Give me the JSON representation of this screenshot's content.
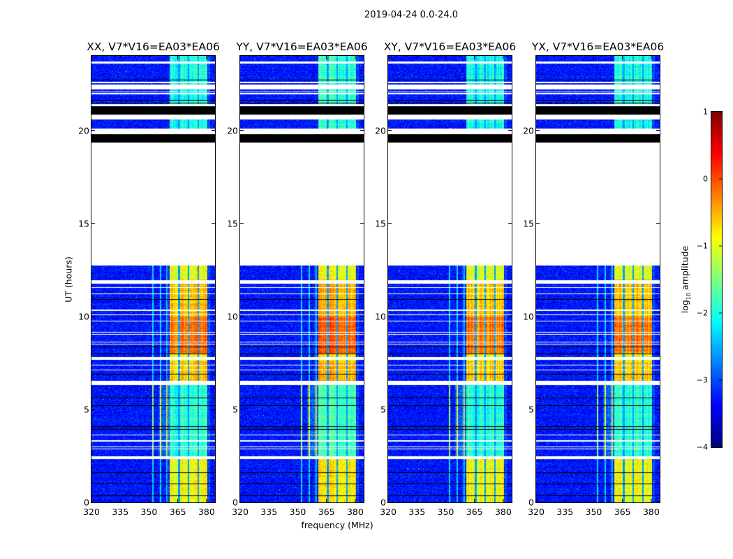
{
  "figure_title": "2019-04-24 0.0-24.0",
  "chart_data": {
    "type": "heatmap",
    "panels": [
      {
        "title": "XX, V7*V16=EA03*EA06",
        "seed": 11,
        "gain": 0.0
      },
      {
        "title": "YY, V7*V16=EA03*EA06",
        "seed": 23,
        "gain": 0.1
      },
      {
        "title": "XY, V7*V16=EA03*EA06",
        "seed": 37,
        "gain": -0.05
      },
      {
        "title": "YX, V7*V16=EA03*EA06",
        "seed": 51,
        "gain": -0.05
      }
    ],
    "xlabel": "frequency (MHz)",
    "ylabel": "UT (hours)",
    "xlim": [
      320,
      384.4
    ],
    "ylim": [
      0,
      24
    ],
    "xticks": [
      320,
      335,
      350,
      365,
      380
    ],
    "xtick_labels": [
      "320",
      "335",
      "350",
      "365",
      "380"
    ],
    "yticks": [
      0,
      5,
      10,
      15,
      20
    ],
    "ytick_labels": [
      "0",
      "5",
      "10",
      "15",
      "20"
    ],
    "colorbar": {
      "label_main": "log",
      "label_sub": "10",
      "label_suffix": " amplitude",
      "range": [
        -4,
        1
      ],
      "ticks": [
        1,
        0,
        -1,
        -2,
        -3,
        -4
      ],
      "tick_labels": [
        "1",
        "0",
        "−1",
        "−2",
        "−3",
        "−4"
      ],
      "colormap": "jet"
    },
    "background_level": -3.3,
    "rfi_band_mhz": [
      360.7,
      380.4
    ],
    "rfi_gaps_mhz": [
      365.6,
      370.5,
      375.6
    ],
    "rfi_levels": [
      {
        "from": 0,
        "to": 2.4,
        "level": -0.9
      },
      {
        "from": 2.4,
        "to": 6.3,
        "level": -1.9
      },
      {
        "from": 6.3,
        "to": 7.6,
        "level": -0.6
      },
      {
        "from": 7.6,
        "to": 8.0,
        "level": -0.9
      },
      {
        "from": 8.0,
        "to": 10.0,
        "level": -0.2
      },
      {
        "from": 10.0,
        "to": 12.0,
        "level": -0.6
      },
      {
        "from": 12.0,
        "to": 12.75,
        "level": -1.0
      },
      {
        "from": 19.3,
        "to": 24,
        "level": -2.0
      }
    ],
    "narrow_lines_mhz": [
      352.0,
      356.0,
      359.2,
      359.8
    ],
    "masked_rows": [
      [
        23.6,
        23.7
      ],
      [
        22.55,
        22.62
      ],
      [
        22.2,
        22.45
      ],
      [
        22.05,
        22.1
      ],
      [
        21.95,
        22.0
      ],
      [
        21.3,
        21.4
      ],
      [
        20.6,
        20.85
      ],
      [
        19.8,
        20.1
      ],
      [
        12.75,
        19.33
      ],
      [
        11.76,
        11.94
      ],
      [
        11.53,
        11.57
      ],
      [
        11.19,
        11.23
      ],
      [
        10.28,
        10.35
      ],
      [
        10.08,
        10.12
      ],
      [
        9.73,
        9.77
      ],
      [
        9.13,
        9.17
      ],
      [
        9.02,
        9.06
      ],
      [
        8.6,
        8.64
      ],
      [
        8.49,
        8.53
      ],
      [
        7.65,
        7.8
      ],
      [
        7.37,
        7.41
      ],
      [
        7.1,
        7.14
      ],
      [
        6.3,
        6.52
      ],
      [
        3.62,
        3.66
      ],
      [
        3.28,
        3.33
      ],
      [
        2.98,
        3.02
      ],
      [
        2.87,
        2.91
      ],
      [
        2.33,
        2.47
      ]
    ],
    "flagged_rows": [
      [
        22.69,
        22.74
      ],
      [
        21.58,
        21.62
      ],
      [
        21.43,
        21.47
      ],
      [
        20.85,
        21.3
      ],
      [
        19.33,
        19.8
      ],
      [
        10.88,
        10.92
      ],
      [
        8.34,
        8.38
      ],
      [
        7.97,
        8.01
      ],
      [
        6.88,
        6.92
      ],
      [
        5.6,
        5.64
      ],
      [
        5.19,
        5.23
      ],
      [
        4.06,
        4.1
      ],
      [
        3.92,
        3.96
      ],
      [
        1.59,
        1.63
      ],
      [
        0.98,
        1.02
      ],
      [
        0.32,
        0.36
      ]
    ]
  }
}
